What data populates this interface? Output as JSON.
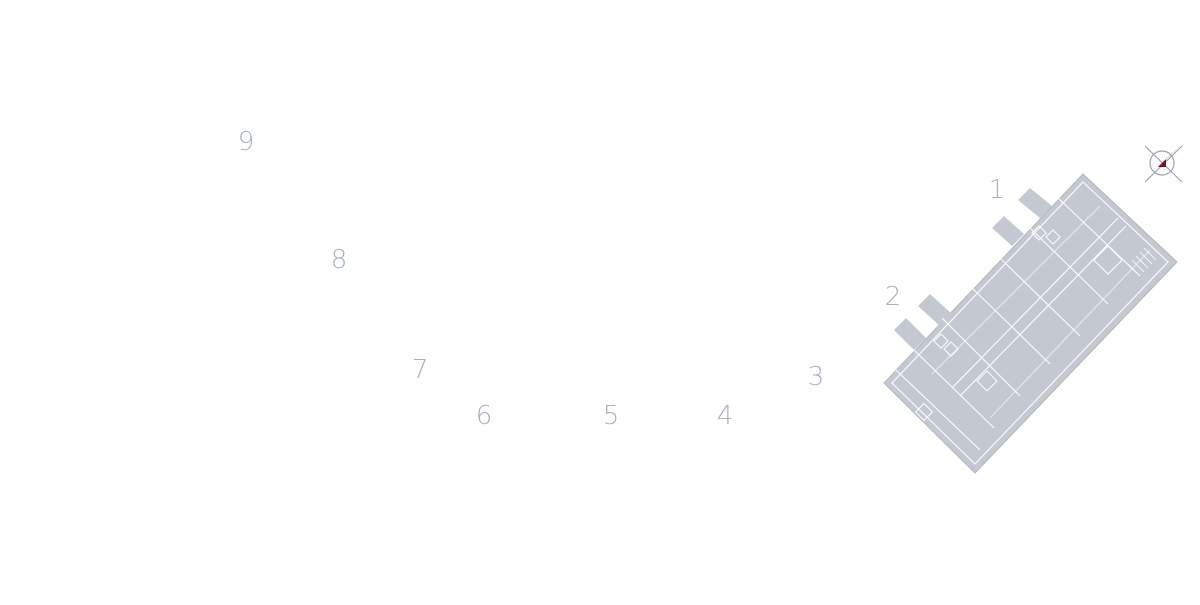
{
  "map": {
    "sections": [
      {
        "id": "1",
        "label": "1",
        "active": true
      },
      {
        "id": "2",
        "label": "2",
        "active": true
      },
      {
        "id": "3",
        "label": "3",
        "active": false
      },
      {
        "id": "4",
        "label": "4",
        "active": false
      },
      {
        "id": "5",
        "label": "5",
        "active": false
      },
      {
        "id": "6",
        "label": "6",
        "active": false
      },
      {
        "id": "7",
        "label": "7",
        "active": false
      },
      {
        "id": "8",
        "label": "8",
        "active": false
      },
      {
        "id": "9",
        "label": "9",
        "active": false
      }
    ]
  },
  "colors": {
    "label": "#a7b1c0",
    "building_fill": "#c3c8d1",
    "building_line": "#ffffff",
    "compass_needle": "#a3202e",
    "compass_cross": "#9aa3ae"
  },
  "icons": {
    "compass": "compass-icon",
    "building": "floor-plan-icon"
  }
}
